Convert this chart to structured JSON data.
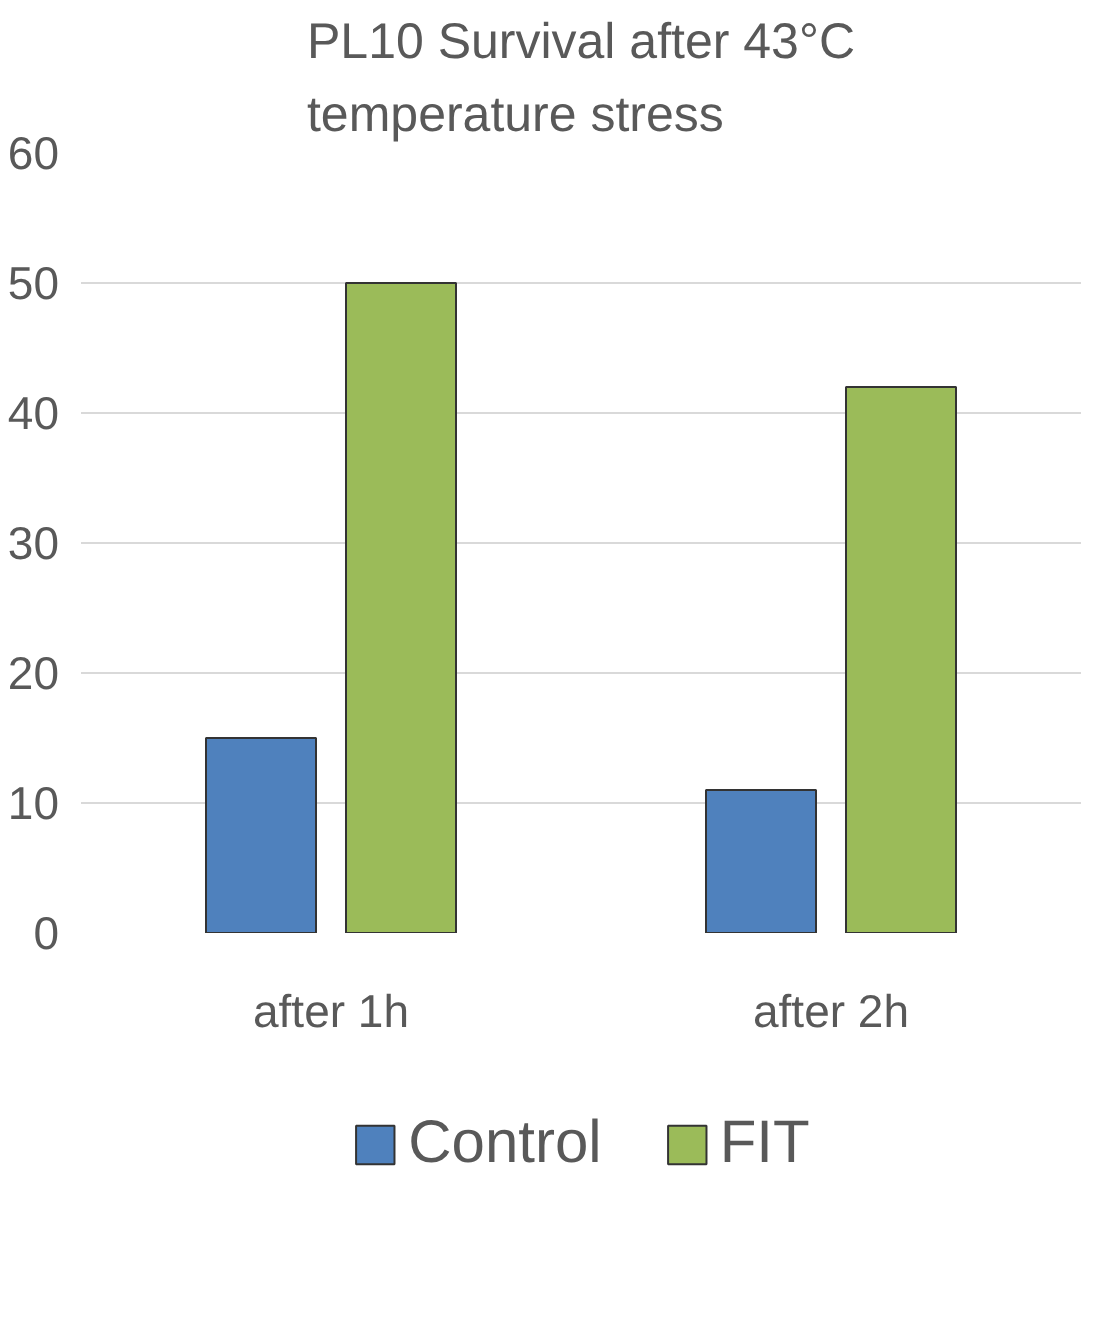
{
  "chart_data": {
    "type": "bar",
    "title": "PL10 Survival after 43°C\ntemperature stress",
    "categories": [
      "after 1h",
      "after 2h"
    ],
    "series": [
      {
        "name": "Control",
        "color": "#4f81bd",
        "values": [
          15,
          11
        ]
      },
      {
        "name": "FIT",
        "color": "#9bbb59",
        "values": [
          50,
          42
        ]
      }
    ],
    "ylim": [
      0,
      60
    ],
    "yticks": [
      0,
      10,
      20,
      30,
      40,
      50,
      60
    ],
    "grid": "y",
    "legend": "bottom"
  }
}
